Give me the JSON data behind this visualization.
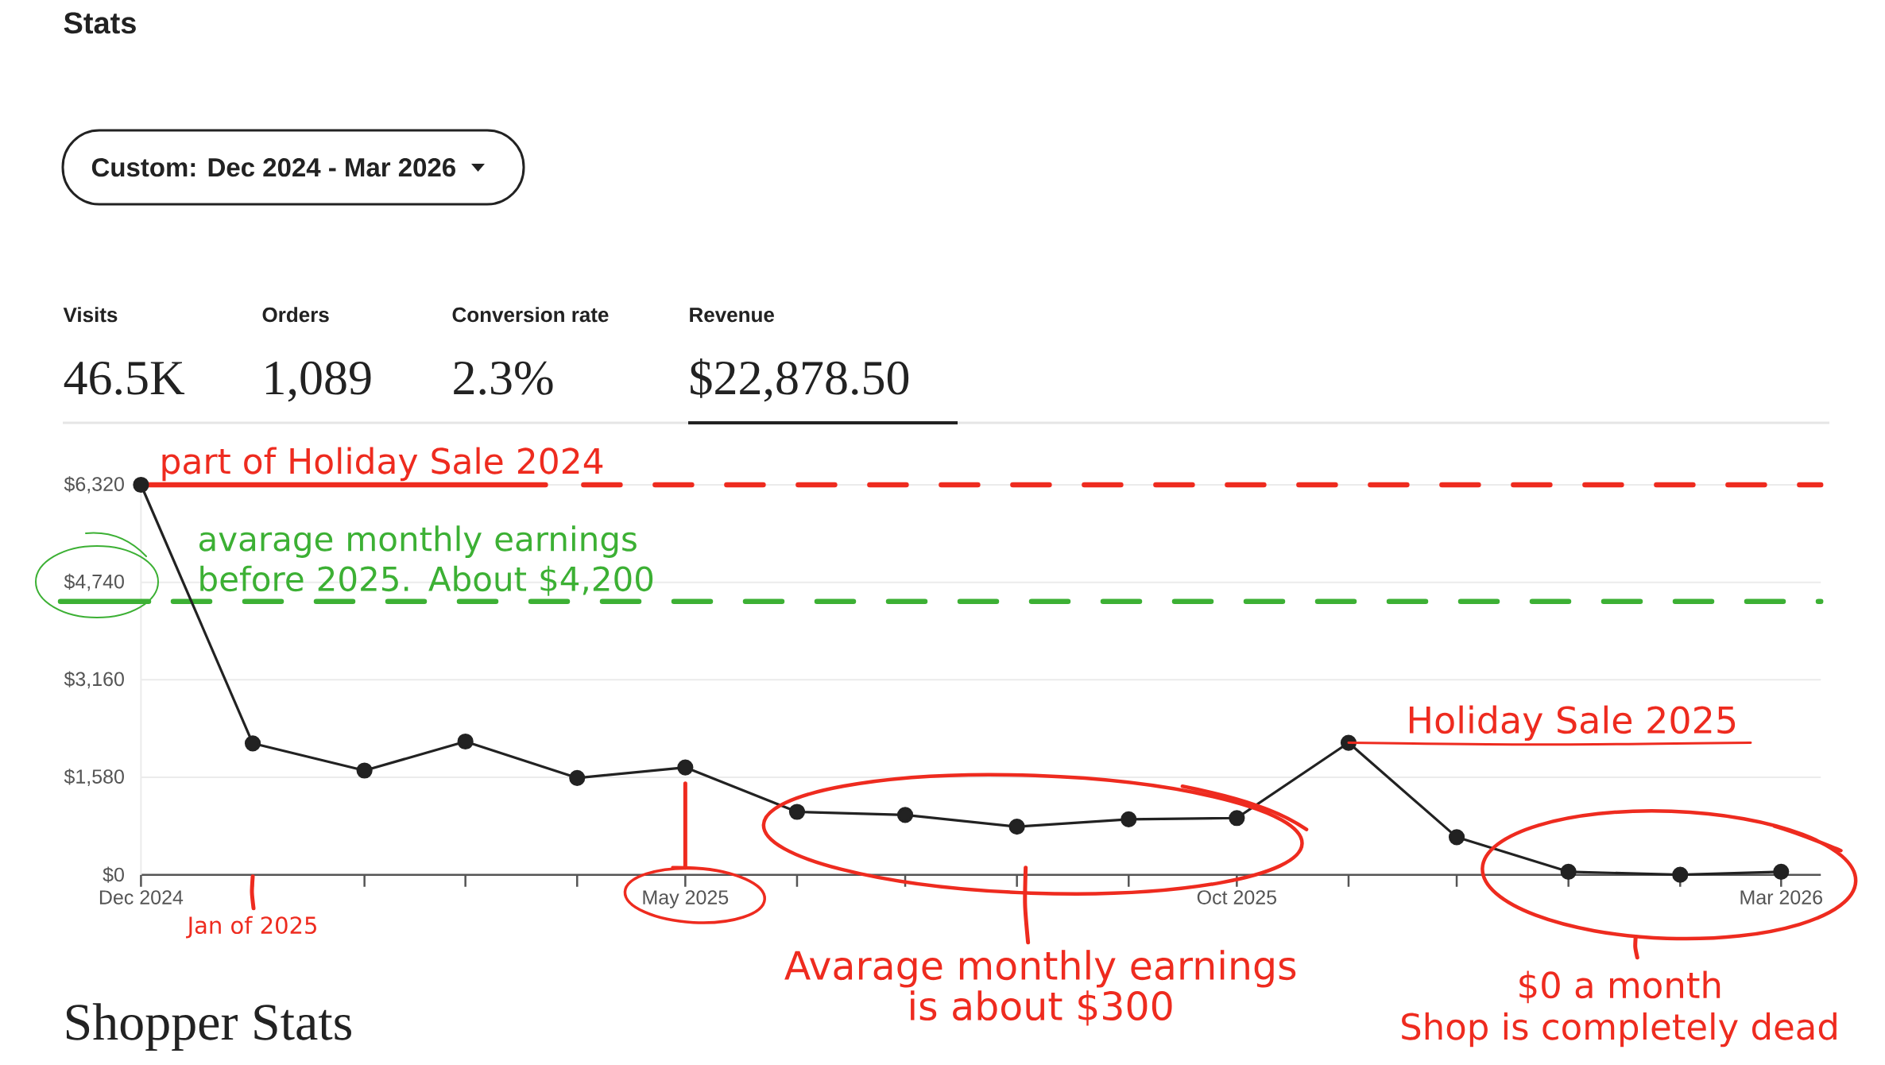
{
  "chart_data": {
    "type": "line",
    "title": "Stats",
    "x": [
      "2024-12",
      "2025-01",
      "2025-02",
      "2025-03",
      "2025-04",
      "2025-05",
      "2025-06",
      "2025-07",
      "2025-08",
      "2025-09",
      "2025-10",
      "2025-11",
      "2025-12",
      "2026-01",
      "2026-02",
      "2026-03"
    ],
    "values": [
      6320,
      2130,
      1690,
      2160,
      1570,
      1740,
      1020,
      970,
      780,
      900,
      920,
      2140,
      610,
      50,
      0,
      50
    ],
    "color": "#222222",
    "marker": "circle",
    "line_style": "solid",
    "xlim": [
      "2024-12",
      "2026-03-12"
    ],
    "xticks": [
      {
        "value": "2024-12",
        "label": "Dec 2024"
      },
      {
        "value": "2025-01",
        "label": null
      },
      {
        "value": "2025-02",
        "label": null
      },
      {
        "value": "2025-03",
        "label": null
      },
      {
        "value": "2025-04",
        "label": null
      },
      {
        "value": "2025-05",
        "label": "May 2025"
      },
      {
        "value": "2025-06",
        "label": null
      },
      {
        "value": "2025-07",
        "label": null
      },
      {
        "value": "2025-08",
        "label": null
      },
      {
        "value": "2025-09",
        "label": null
      },
      {
        "value": "2025-10",
        "label": "Oct 2025"
      },
      {
        "value": "2025-11",
        "label": null
      },
      {
        "value": "2025-12",
        "label": null
      },
      {
        "value": "2026-01",
        "label": null
      },
      {
        "value": "2026-02",
        "label": null
      },
      {
        "value": "2026-03",
        "label": "Mar 2026"
      }
    ],
    "ylim": [
      0,
      6320
    ],
    "yticks": [
      {
        "value": 0,
        "label": "$0"
      },
      {
        "value": 1580,
        "label": "$1,580"
      },
      {
        "value": 3160,
        "label": "$3,160"
      },
      {
        "value": 4740,
        "label": "$4,740"
      },
      {
        "value": 6320,
        "label": "$6,320"
      }
    ],
    "grid": "y",
    "ref_lines": [
      {
        "axis": "y",
        "value": 6320,
        "label": "part of Holiday Sale 2024",
        "color": "#ee2b1f",
        "line_style": "dashed"
      },
      {
        "axis": "y",
        "value": 4430,
        "label": "avarage monthly earnings before 2025. About $4,200",
        "color": "#3cb034",
        "line_style": "dashed"
      },
      {
        "axis": "x",
        "value": "2025-05",
        "color": "#ee2b1f",
        "line_style": "solid"
      }
    ],
    "annotations": [
      "Custom: Dec 2024 - Mar 2026",
      "Visits",
      "46.5K",
      "Orders",
      "1,089",
      "Conversion rate",
      "2.3%",
      "Revenue",
      "$22,878.50",
      "Jan of 2025",
      "Avarage monthly earnings is about $300",
      {
        "text": "Holiday Sale 2025",
        "x": "2025-11",
        "y": 2140
      },
      {
        "text": "$0 a month",
        "x": "2026-02",
        "y": 0
      },
      "Shop is completely dead",
      "Shopper Stats"
    ]
  }
}
